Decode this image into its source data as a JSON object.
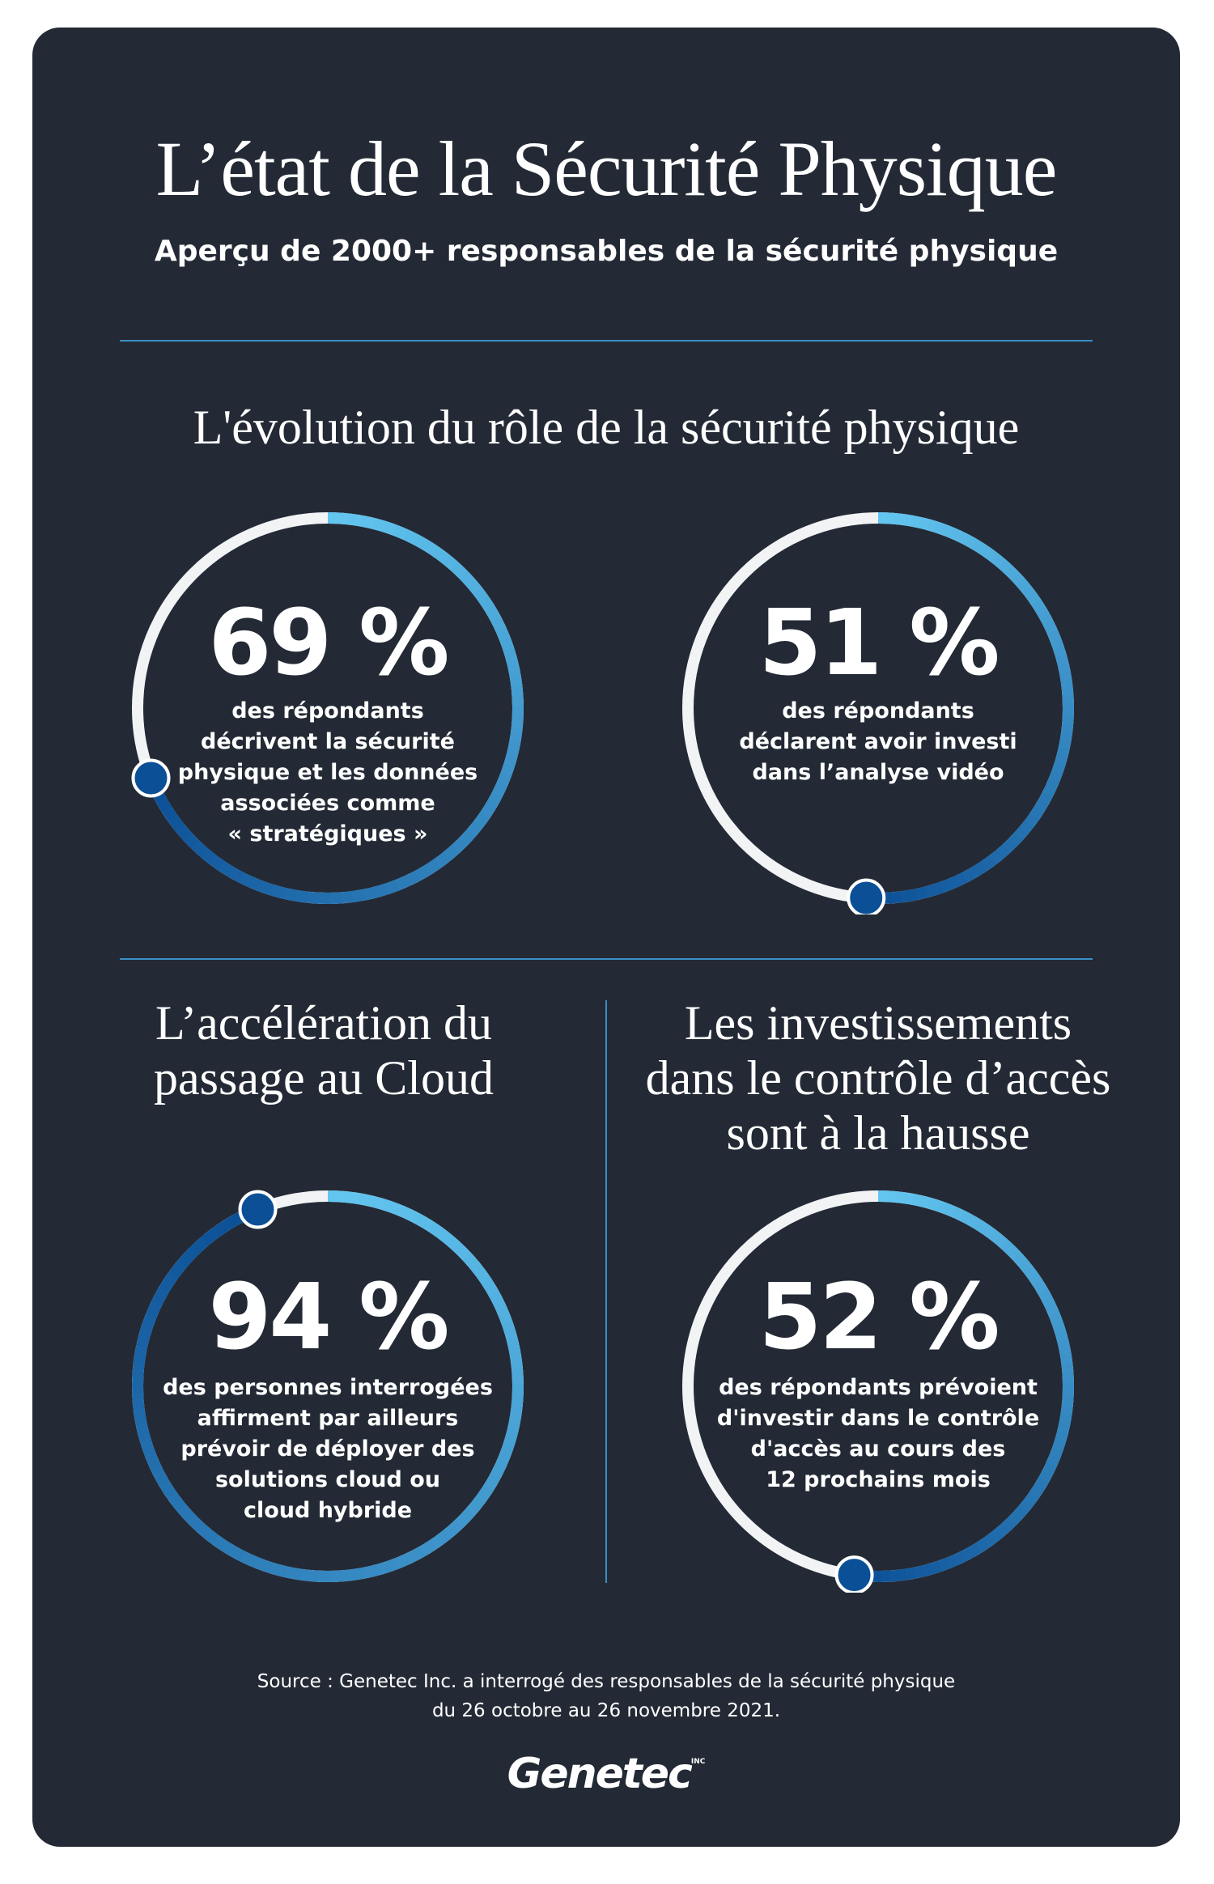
{
  "header": {
    "title": "L’état de la Sécurité Physique",
    "subtitle": "Aperçu de 2000+ responsables de la sécurité physique"
  },
  "sections": {
    "evolution_title": "L'évolution du rôle de la sécurité physique",
    "cloud_title": [
      "L’accélération du",
      "passage au Cloud"
    ],
    "access_title": [
      "Les investissements",
      "dans le contrôle d’accès",
      "sont à la hausse"
    ]
  },
  "stats": [
    {
      "value": "69 %",
      "percent": 69,
      "description": [
        "des répondants",
        "décrivent la sécurité",
        "physique et les données",
        "associées comme",
        "« stratégiques »"
      ]
    },
    {
      "value": "51 %",
      "percent": 51,
      "description": [
        "des répondants",
        "déclarent avoir investi",
        "dans l’analyse vidéo"
      ]
    },
    {
      "value": "94 %",
      "percent": 94,
      "description": [
        "des personnes interrogées",
        "affirment par ailleurs",
        "prévoir de déployer des",
        "solutions cloud ou",
        "cloud hybride"
      ]
    },
    {
      "value": "52 %",
      "percent": 52,
      "description": [
        "des répondants prévoient",
        "d'investir dans le contrôle",
        "d'accès au cours des",
        "12 prochains mois"
      ]
    }
  ],
  "footer": {
    "source": [
      "Source : Genetec Inc. a interrogé des responsables de la sécurité physique",
      "du 26 octobre au 26 novembre 2021."
    ],
    "logo": "Genetec",
    "logo_mark": "INC"
  },
  "colors": {
    "background": "#232a35",
    "ring_track": "#f2f3f5",
    "ring_start": "#63c6f0",
    "ring_end": "#0b4f96",
    "divider": "#3a8fc6",
    "knob": "#0b4f96"
  }
}
